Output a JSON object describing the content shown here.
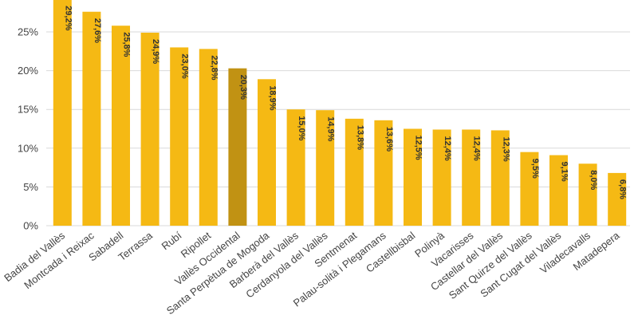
{
  "chart_data": {
    "type": "bar",
    "title": "",
    "xlabel": "",
    "ylabel": "",
    "ylim": [
      0,
      30
    ],
    "yticks": [
      0,
      5,
      10,
      15,
      20,
      25
    ],
    "ytick_labels": [
      "0%",
      "5%",
      "10%",
      "15%",
      "20%",
      "25%"
    ],
    "grid": true,
    "bar_color": "#f5b914",
    "highlight_color": "#c19213",
    "highlight_category": "Vallès Occidental",
    "categories": [
      "Badia del Vallès",
      "Montcada i Reixac",
      "Sabadell",
      "Terrassa",
      "Rubí",
      "Ripollet",
      "Vallès Occidental",
      "Santa Perpètua de Mogoda",
      "Barberà del Vallès",
      "Cerdanyola del Vallès",
      "Sentmenat",
      "Palau-solità i Plegamans",
      "Castellbisbal",
      "Polinyà",
      "Vacarisses",
      "Castellar del Vallès",
      "Sant Quirze del Vallès",
      "Sant Cugat del Vallès",
      "Viladecavalls",
      "Matadepera"
    ],
    "values": [
      29.2,
      27.6,
      25.8,
      24.9,
      23.0,
      22.8,
      20.3,
      18.9,
      15.0,
      14.9,
      13.8,
      13.6,
      12.5,
      12.4,
      12.4,
      12.3,
      9.5,
      9.1,
      8.0,
      6.8
    ],
    "data_labels": [
      "29,2%",
      "27,6%",
      "25,8%",
      "24,9%",
      "23,0%",
      "22,8%",
      "20,3%",
      "18,9%",
      "15,0%",
      "14,9%",
      "13,8%",
      "13,6%",
      "12,5%",
      "12,4%",
      "12,4%",
      "12,3%",
      "9,5%",
      "9,1%",
      "8,0%",
      "6,8%"
    ]
  }
}
